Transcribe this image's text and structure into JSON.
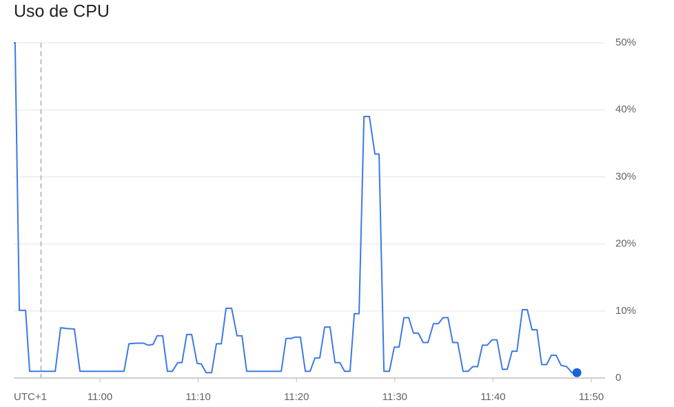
{
  "chart_data": {
    "type": "line",
    "title": "Uso de CPU",
    "timezone_label": "UTC+1",
    "x": [
      "10:51:14",
      "10:51:22",
      "10:51:48",
      "10:52:26",
      "10:52:51",
      "10:55:27",
      "10:56:00",
      "10:56:34",
      "10:57:24",
      "10:57:58",
      "11:02:27",
      "11:02:57",
      "11:03:43",
      "11:04:25",
      "11:04:55",
      "11:05:24",
      "11:05:49",
      "11:06:23",
      "11:06:52",
      "11:07:22",
      "11:07:55",
      "11:08:21",
      "11:08:50",
      "11:09:20",
      "11:09:53",
      "11:10:19",
      "11:10:48",
      "11:11:22",
      "11:11:51",
      "11:12:21",
      "11:12:50",
      "11:13:24",
      "11:13:57",
      "11:14:27",
      "11:14:56",
      "11:18:27",
      "11:18:56",
      "11:19:26",
      "11:19:51",
      "11:20:24",
      "11:20:54",
      "11:21:23",
      "11:21:53",
      "11:22:22",
      "11:22:52",
      "11:23:25",
      "11:23:55",
      "11:24:24",
      "11:24:54",
      "11:25:27",
      "11:25:53",
      "11:26:22",
      "11:26:52",
      "11:27:25",
      "11:27:59",
      "11:28:24",
      "11:28:54",
      "11:29:27",
      "11:29:57",
      "11:30:26",
      "11:30:56",
      "11:31:25",
      "11:31:54",
      "11:32:24",
      "11:32:53",
      "11:33:23",
      "11:33:56",
      "11:34:26",
      "11:34:55",
      "11:35:25",
      "11:35:54",
      "11:36:24",
      "11:36:57",
      "11:37:27",
      "11:37:56",
      "11:38:26",
      "11:38:55",
      "11:39:25",
      "11:39:54",
      "11:40:24",
      "11:40:57",
      "11:41:27",
      "11:41:56",
      "11:42:26",
      "11:42:59",
      "11:43:29",
      "11:43:58",
      "11:44:28",
      "11:44:57",
      "11:45:27",
      "11:45:56",
      "11:46:25",
      "11:46:55",
      "11:47:29",
      "11:48:02",
      "11:48:32"
    ],
    "series": [
      {
        "name": "CPU",
        "color": "#3b78e7",
        "values": [
          50,
          50,
          10.1,
          10.1,
          1.0,
          1.0,
          7.5,
          7.4,
          7.3,
          1.0,
          1.0,
          5.1,
          5.2,
          5.2,
          4.9,
          5.0,
          6.3,
          6.3,
          1.0,
          1.0,
          2.3,
          2.3,
          6.5,
          6.5,
          2.2,
          2.1,
          0.8,
          0.8,
          5.1,
          5.1,
          10.4,
          10.4,
          6.3,
          6.3,
          1.0,
          1.0,
          5.9,
          5.9,
          6.1,
          6.1,
          1.0,
          1.0,
          3.0,
          3.0,
          7.6,
          7.6,
          2.3,
          2.3,
          1.0,
          1.0,
          9.6,
          9.6,
          39.0,
          39.0,
          33.4,
          33.4,
          1.0,
          1.0,
          4.6,
          4.6,
          9.0,
          9.0,
          6.7,
          6.7,
          5.3,
          5.3,
          8.1,
          8.1,
          9.0,
          9.0,
          5.3,
          5.3,
          1.0,
          1.0,
          1.7,
          1.7,
          4.9,
          4.9,
          5.7,
          5.7,
          1.3,
          1.3,
          4.0,
          4.0,
          10.2,
          10.2,
          7.2,
          7.2,
          2.0,
          2.0,
          3.4,
          3.4,
          1.9,
          1.7,
          0.8,
          0.8
        ]
      }
    ],
    "marker_x": "10:54:00",
    "xlim": [
      "10:51:14",
      "11:51:24"
    ],
    "xticks": [
      "11:00",
      "11:10",
      "11:20",
      "11:30",
      "11:40",
      "11:50"
    ],
    "ylim": [
      0,
      50
    ],
    "yticks": [
      0,
      {
        "value": 10,
        "label": "10%"
      },
      {
        "value": 20,
        "label": "20%"
      },
      {
        "value": 30,
        "label": "30%"
      },
      {
        "value": 40,
        "label": "40%"
      },
      {
        "value": 50,
        "label": "50%"
      }
    ],
    "grid": true
  }
}
